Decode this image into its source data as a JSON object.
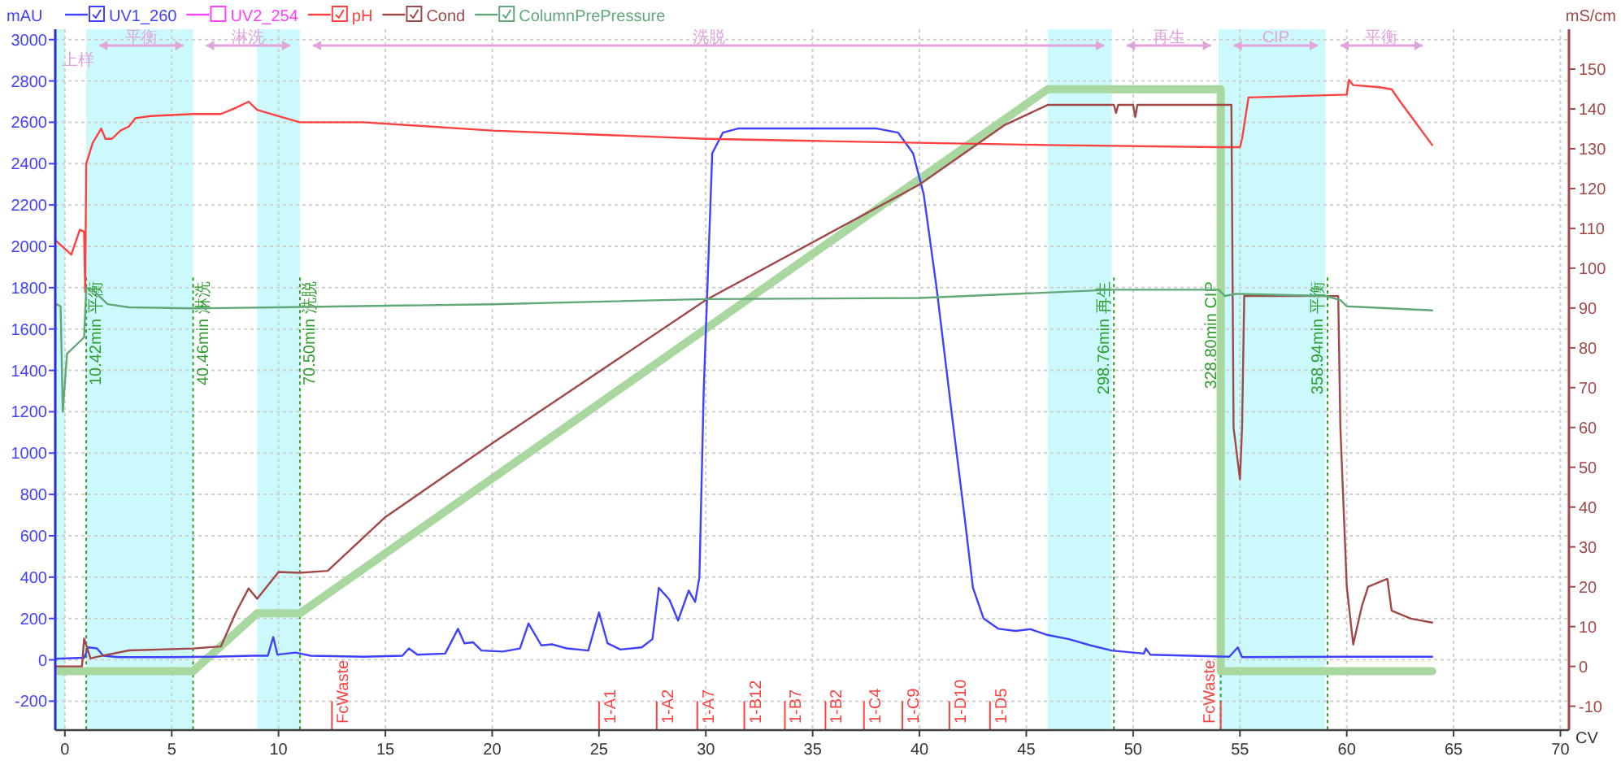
{
  "chart_data": {
    "type": "line",
    "xlabel": "CV",
    "ylabel": "mAU",
    "y2label": "mS/cm",
    "xlim": [
      -0.45,
      70.4
    ],
    "xticks": [
      0,
      5,
      10,
      15,
      20,
      25,
      30,
      35,
      40,
      45,
      50,
      55,
      60,
      65,
      70
    ],
    "ylim": [
      -340,
      3050
    ],
    "yticks": [
      -200,
      0,
      200,
      400,
      600,
      800,
      1000,
      1200,
      1400,
      1600,
      1800,
      2000,
      2200,
      2400,
      2600,
      2800,
      3000
    ],
    "y2lim": [
      -16,
      160
    ],
    "y2ticks": [
      -10,
      0,
      10,
      20,
      30,
      40,
      50,
      60,
      70,
      80,
      90,
      100,
      110,
      120,
      130,
      140,
      150
    ],
    "grid": true,
    "legend": "top",
    "bands": [
      {
        "axis": "x",
        "from": -0.45,
        "to": 0,
        "color": "#ccfafc"
      },
      {
        "axis": "x",
        "from": 1,
        "to": 6,
        "color": "#ccfafc"
      },
      {
        "axis": "x",
        "from": 9,
        "to": 11,
        "color": "#ccfafc"
      },
      {
        "axis": "x",
        "from": 46,
        "to": 49,
        "color": "#ccfafc"
      },
      {
        "axis": "x",
        "from": 54,
        "to": 59,
        "color": "#ccfafc"
      }
    ],
    "series": [
      {
        "name": "UV1_260",
        "color": "#4040ff",
        "x": [
          -0.45,
          0.9,
          1.1,
          1.5,
          1.8,
          2.5,
          5,
          7,
          8.8,
          9.5,
          9.75,
          9.95,
          10.8,
          11.5,
          14,
          15.8,
          16.1,
          16.5,
          17.8,
          18.4,
          18.7,
          19.1,
          19.5,
          20.5,
          21.3,
          21.7,
          22.3,
          22.8,
          23.5,
          24.5,
          25,
          25.4,
          26,
          27,
          27.5,
          27.8,
          28.3,
          28.7,
          29.2,
          29.5,
          29.7,
          29.9,
          30.3,
          30.8,
          31.5,
          38,
          39,
          39.7,
          40.2,
          40.8,
          41.5,
          42.1,
          42.5,
          43,
          43.7,
          44.5,
          45.2,
          46,
          47,
          48,
          49,
          50.5,
          50.6,
          50.8,
          54.5,
          54.9,
          55.1,
          60,
          64
        ],
        "values": [
          5,
          10,
          60,
          55,
          20,
          13,
          13,
          15,
          20,
          20,
          110,
          25,
          35,
          20,
          15,
          20,
          55,
          25,
          30,
          150,
          80,
          85,
          45,
          40,
          55,
          176,
          70,
          75,
          55,
          45,
          229,
          80,
          50,
          60,
          100,
          348,
          290,
          190,
          335,
          280,
          400,
          1300,
          2450,
          2550,
          2570,
          2570,
          2550,
          2450,
          2250,
          1800,
          1200,
          700,
          350,
          200,
          150,
          140,
          148,
          120,
          100,
          70,
          45,
          30,
          55,
          25,
          15,
          60,
          13,
          15,
          15
        ]
      },
      {
        "name": "UV2_254",
        "color": "#ff40ff"
      },
      {
        "name": "pH",
        "color": "#ff4040",
        "x": [
          -0.45,
          0.3,
          0.7,
          0.9,
          0.95,
          1.0,
          1.3,
          1.7,
          1.9,
          2.2,
          2.6,
          3.0,
          3.3,
          4,
          6,
          7.3,
          8,
          8.6,
          9,
          10,
          11,
          14,
          20,
          25,
          30,
          35,
          46,
          54,
          55.0,
          55.1,
          55.4,
          60,
          60.1,
          60.3,
          61.5,
          62.1,
          62.5,
          64
        ],
        "values": [
          2030,
          1960,
          2080,
          2070,
          1780,
          2400,
          2500,
          2570,
          2520,
          2520,
          2560,
          2580,
          2620,
          2630,
          2640,
          2640,
          2670,
          2700,
          2660,
          2630,
          2600,
          2600,
          2560,
          2540,
          2520,
          2510,
          2490,
          2480,
          2480,
          2520,
          2720,
          2734,
          2805,
          2780,
          2770,
          2760,
          2700,
          2490
        ]
      },
      {
        "name": "Cond",
        "color": "#a04848",
        "axis": "y2",
        "x": [
          -0.45,
          0.8,
          0.9,
          1.2,
          1.5,
          3,
          6,
          7.3,
          8,
          8.6,
          9,
          10,
          11,
          12.3,
          15,
          20,
          30,
          40,
          44,
          46,
          49.1,
          49.2,
          49.3,
          50,
          50.1,
          50.2,
          54.6,
          54.7,
          55.0,
          55.1,
          55.2,
          59.6,
          59.7,
          60.0,
          60.3,
          60.7,
          61,
          61.9,
          62.1,
          63,
          64
        ],
        "values": [
          0,
          0,
          7,
          2,
          2.4,
          4,
          4.5,
          5,
          13.5,
          19.6,
          17,
          23.7,
          23.5,
          24,
          37.5,
          56,
          92,
          121,
          136,
          141,
          141,
          139,
          141,
          141,
          138,
          141,
          141,
          60,
          47,
          60,
          93,
          93,
          60,
          20,
          5.5,
          15,
          20,
          22,
          14,
          12,
          11
        ]
      },
      {
        "name": "ColumnPrePressure",
        "color": "#60a878",
        "x": [
          -0.4,
          -0.2,
          -0.1,
          0.1,
          0.6,
          0.9,
          1.0,
          1.3,
          2,
          3,
          6,
          10,
          20,
          30,
          40,
          49,
          54,
          54.3,
          54.8,
          59,
          59.7,
          60,
          64
        ],
        "values": [
          1720,
          1710,
          1200,
          1480,
          1530,
          1560,
          1800,
          1790,
          1720,
          1705,
          1700,
          1705,
          1720,
          1745,
          1750,
          1790,
          1790,
          1760,
          1770,
          1760,
          1740,
          1710,
          1690
        ]
      },
      {
        "color": "#a8d8a0",
        "x": [
          -0.45,
          6,
          9,
          11,
          46,
          54.1,
          54.1,
          64
        ],
        "values": [
          -55,
          -55,
          225,
          225,
          2760,
          2760,
          -55,
          -55
        ]
      }
    ],
    "ref_lines": [
      {
        "axis": "x",
        "value": 1.0,
        "label": "10.42min 平衡",
        "color": "#2e9e2e",
        "line_style": "dotted"
      },
      {
        "axis": "x",
        "value": 6.0,
        "label": "40.46min 淋洗",
        "color": "#2e9e2e",
        "line_style": "dotted"
      },
      {
        "axis": "x",
        "value": 11.0,
        "label": "70.50min 洗脱",
        "color": "#2e9e2e",
        "line_style": "dotted"
      },
      {
        "axis": "x",
        "value": 49.1,
        "label": "298.76min 再生",
        "color": "#2e9e2e",
        "line_style": "dotted"
      },
      {
        "axis": "x",
        "value": 54.1,
        "label": "328.80min CIP",
        "color": "#2e9e2e",
        "line_style": "dotted"
      },
      {
        "axis": "x",
        "value": 59.1,
        "label": "358.94min 平衡",
        "color": "#2e9e2e",
        "line_style": "dotted"
      },
      {
        "axis": "x",
        "value": 12.5,
        "label": "FcWaste",
        "color": "#ff4040",
        "line_style": "solid"
      },
      {
        "axis": "x",
        "value": 25,
        "label": "1-A1",
        "color": "#ff4040",
        "line_style": "solid"
      },
      {
        "axis": "x",
        "value": 27.7,
        "label": "1-A2",
        "color": "#ff4040",
        "line_style": "solid"
      },
      {
        "axis": "x",
        "value": 29.6,
        "label": "1-A7",
        "color": "#ff4040",
        "line_style": "solid"
      },
      {
        "axis": "x",
        "value": 31.8,
        "label": "1-B12",
        "color": "#ff4040",
        "line_style": "solid"
      },
      {
        "axis": "x",
        "value": 33.7,
        "label": "1-B7",
        "color": "#ff4040",
        "line_style": "solid"
      },
      {
        "axis": "x",
        "value": 35.6,
        "label": "1-B2",
        "color": "#ff4040",
        "line_style": "solid"
      },
      {
        "axis": "x",
        "value": 37.4,
        "label": "1-C4",
        "color": "#ff4040",
        "line_style": "solid"
      },
      {
        "axis": "x",
        "value": 39.2,
        "label": "1-C9",
        "color": "#ff4040",
        "line_style": "solid"
      },
      {
        "axis": "x",
        "value": 41.4,
        "label": "1-D10",
        "color": "#ff4040",
        "line_style": "solid"
      },
      {
        "axis": "x",
        "value": 43.3,
        "label": "1-D5",
        "color": "#ff4040",
        "line_style": "solid"
      },
      {
        "axis": "x",
        "value": 54.1,
        "label": "FcWaste",
        "color": "#ff4040",
        "line_style": "solid"
      }
    ],
    "annotations": [
      "上样",
      "平衡",
      "淋洗",
      "洗脱",
      "再生",
      "CIP",
      "平衡"
    ]
  }
}
